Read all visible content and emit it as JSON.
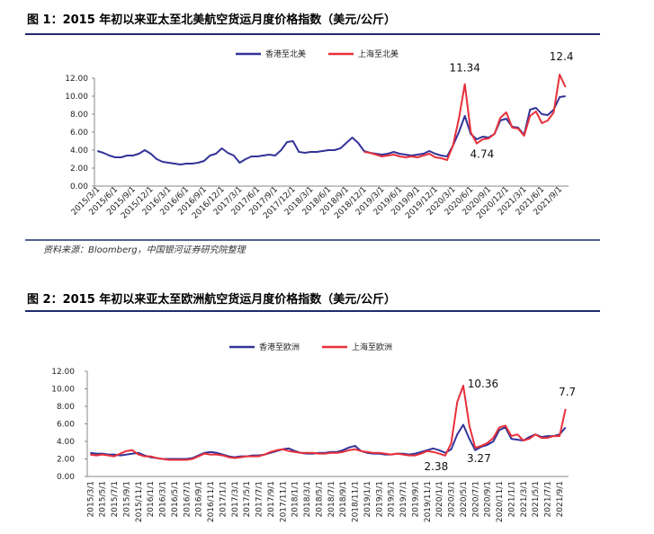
{
  "chart_data": [
    {
      "type": "line",
      "title": "图 1：2015 年初以来亚太至北美航空货运月度价格指数（美元/公斤）",
      "source": "资料来源：Bloomberg，中国银河证券研究院整理",
      "categories": [
        "2015/3/1",
        null,
        null,
        "2015/6/1",
        null,
        null,
        "2015/9/1",
        null,
        null,
        "2015/12/1",
        null,
        null,
        "2016/3/1",
        null,
        null,
        "2016/6/1",
        null,
        null,
        "2016/9/1",
        null,
        null,
        "2016/12/1",
        null,
        null,
        "2017/3/1",
        null,
        null,
        "2017/6/1",
        null,
        null,
        "2017/9/1",
        null,
        null,
        "2017/12/1",
        null,
        null,
        "2018/3/1",
        null,
        null,
        "2018/6/1",
        null,
        null,
        "2018/9/1",
        null,
        null,
        "2018/12/1",
        null,
        null,
        "2019/3/1",
        null,
        null,
        "2019/6/1",
        null,
        null,
        "2019/9/1",
        null,
        null,
        "2019/12/1",
        null,
        null,
        "2020/3/1",
        null,
        null,
        "2020/6/1",
        null,
        null,
        "2020/9/1",
        null,
        null,
        "2020/12/1",
        null,
        null,
        "2021/3/1",
        null,
        null,
        "2021/6/1",
        null,
        null,
        "2021/9/1",
        null
      ],
      "series": [
        {
          "name": "香港至北美",
          "color": "#333399",
          "values": [
            3.9,
            3.7,
            3.4,
            3.2,
            3.2,
            3.4,
            3.4,
            3.6,
            4.0,
            3.6,
            3.0,
            2.7,
            2.6,
            2.5,
            2.4,
            2.5,
            2.5,
            2.6,
            2.8,
            3.4,
            3.6,
            4.2,
            3.7,
            3.4,
            2.6,
            3.0,
            3.3,
            3.3,
            3.4,
            3.5,
            3.4,
            4.0,
            4.9,
            5.0,
            3.8,
            3.7,
            3.8,
            3.8,
            3.9,
            4.0,
            4.0,
            4.2,
            4.8,
            5.4,
            4.8,
            3.9,
            3.7,
            3.6,
            3.5,
            3.6,
            3.8,
            3.6,
            3.5,
            3.4,
            3.5,
            3.6,
            3.9,
            3.6,
            3.4,
            3.3,
            4.5,
            6.0,
            7.8,
            5.8,
            5.2,
            5.5,
            5.4,
            5.8,
            7.3,
            7.5,
            6.6,
            6.5,
            5.7,
            8.5,
            8.7,
            8.0,
            7.9,
            8.5,
            9.9,
            10.0
          ]
        },
        {
          "name": "上海至北美",
          "color": "#e8303a",
          "values": [
            null,
            null,
            null,
            null,
            null,
            null,
            null,
            null,
            null,
            null,
            null,
            null,
            null,
            null,
            null,
            null,
            null,
            null,
            null,
            null,
            null,
            null,
            null,
            null,
            null,
            null,
            null,
            null,
            null,
            null,
            null,
            null,
            null,
            null,
            null,
            null,
            null,
            null,
            null,
            null,
            null,
            null,
            null,
            null,
            null,
            3.8,
            3.7,
            3.5,
            3.3,
            3.4,
            3.5,
            3.3,
            3.2,
            3.3,
            3.2,
            3.4,
            3.6,
            3.2,
            3.1,
            2.9,
            4.5,
            7.5,
            11.34,
            6.0,
            4.74,
            5.2,
            5.3,
            5.8,
            7.6,
            8.2,
            6.5,
            6.4,
            5.6,
            7.8,
            8.3,
            7.0,
            7.3,
            8.2,
            12.4,
            11.0
          ]
        }
      ],
      "ylim": [
        0,
        12
      ],
      "yticks": [
        {
          "value": 0,
          "label": "0.00"
        },
        {
          "value": 2,
          "label": "2.00"
        },
        {
          "value": 4,
          "label": "4.00"
        },
        {
          "value": 6,
          "label": "6.00"
        },
        {
          "value": 8,
          "label": "8.00"
        },
        {
          "value": 10,
          "label": "10.00"
        },
        {
          "value": 12,
          "label": "12.00"
        }
      ],
      "grid": false
    },
    {
      "type": "line",
      "title": "图 2：2015 年初以来亚太至欧洲航空货运月度价格指数（美元/公斤）",
      "categories": [
        "2015/3/1",
        null,
        "2015/5/1",
        null,
        "2015/7/1",
        null,
        "2015/9/1",
        null,
        "2015/11/1",
        null,
        "2016/1/1",
        null,
        "2016/3/1",
        null,
        "2016/5/1",
        null,
        "2016/7/1",
        null,
        "2016/9/1",
        null,
        "2016/11/1",
        null,
        "2017/1/1",
        null,
        "2017/3/1",
        null,
        "2017/5/1",
        null,
        "2017/7/1",
        null,
        "2017/9/1",
        null,
        "2017/11/1",
        null,
        "2018/1/1",
        null,
        "2018/3/1",
        null,
        "2018/5/1",
        null,
        "2018/7/1",
        null,
        "2018/9/1",
        null,
        "2018/11/1",
        null,
        "2019/1/1",
        null,
        "2019/3/1",
        null,
        "2019/5/1",
        null,
        "2019/7/1",
        null,
        "2019/9/1",
        null,
        "2019/11/1",
        null,
        "2020/1/1",
        null,
        "2020/3/1",
        null,
        "2020/5/1",
        null,
        "2020/7/1",
        null,
        "2020/9/1",
        null,
        "2020/11/1",
        null,
        "2021/1/1",
        null,
        "2021/3/1",
        null,
        "2021/5/1",
        null,
        "2021/7/1",
        null,
        "2021/9/1",
        null
      ],
      "series": [
        {
          "name": "香港至欧洲",
          "color": "#333399",
          "values": [
            2.7,
            2.6,
            2.6,
            2.5,
            2.5,
            2.4,
            2.5,
            2.6,
            2.7,
            2.4,
            2.2,
            2.1,
            2.0,
            2.0,
            2.0,
            2.0,
            2.0,
            2.1,
            2.4,
            2.7,
            2.8,
            2.7,
            2.5,
            2.3,
            2.2,
            2.3,
            2.3,
            2.4,
            2.4,
            2.5,
            2.7,
            2.9,
            3.1,
            3.2,
            2.9,
            2.7,
            2.6,
            2.6,
            2.7,
            2.7,
            2.8,
            2.8,
            3.0,
            3.3,
            3.5,
            2.9,
            2.7,
            2.6,
            2.6,
            2.5,
            2.5,
            2.6,
            2.6,
            2.5,
            2.6,
            2.8,
            3.0,
            3.2,
            3.0,
            2.7,
            3.1,
            4.8,
            5.9,
            4.3,
            3.0,
            3.4,
            3.6,
            4.0,
            5.3,
            5.6,
            4.3,
            4.2,
            4.1,
            4.5,
            4.8,
            4.5,
            4.6,
            4.6,
            4.8,
            5.6
          ]
        },
        {
          "name": "上海至欧洲",
          "color": "#e8303a",
          "values": [
            2.5,
            2.4,
            2.5,
            2.4,
            2.3,
            2.6,
            2.9,
            3.0,
            2.5,
            2.3,
            2.3,
            2.1,
            2.0,
            1.9,
            1.9,
            1.9,
            1.9,
            2.0,
            2.3,
            2.6,
            2.5,
            2.5,
            2.4,
            2.2,
            2.1,
            2.2,
            2.3,
            2.3,
            2.3,
            2.5,
            2.8,
            3.0,
            3.1,
            2.9,
            2.8,
            2.7,
            2.7,
            2.7,
            2.6,
            2.6,
            2.7,
            2.7,
            2.8,
            3.0,
            3.1,
            2.9,
            2.8,
            2.7,
            2.7,
            2.6,
            2.5,
            2.6,
            2.5,
            2.4,
            2.4,
            2.6,
            2.9,
            2.8,
            2.6,
            2.38,
            3.8,
            8.5,
            10.36,
            5.8,
            3.27,
            3.5,
            3.8,
            4.4,
            5.6,
            5.8,
            4.6,
            4.8,
            4.1,
            4.3,
            4.8,
            4.4,
            4.4,
            4.6,
            4.6,
            7.7
          ]
        }
      ],
      "ylim": [
        0,
        12
      ],
      "yticks": [
        {
          "value": 0,
          "label": "0.00"
        },
        {
          "value": 2,
          "label": "2.00"
        },
        {
          "value": 4,
          "label": "4.00"
        },
        {
          "value": 6,
          "label": "6.00"
        },
        {
          "value": 8,
          "label": "8.00"
        },
        {
          "value": 10,
          "label": "10.00"
        },
        {
          "value": 12,
          "label": "12.00"
        }
      ],
      "grid": false
    }
  ]
}
